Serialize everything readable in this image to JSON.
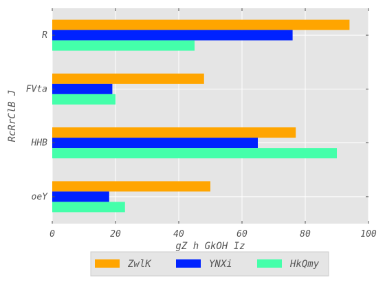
{
  "chart_data": {
    "type": "bar",
    "orientation": "horizontal",
    "categories": [
      "R",
      "FVta",
      "HHB",
      "oeY"
    ],
    "series": [
      {
        "name": "ZwlK",
        "color": "#ffa500",
        "values": [
          94,
          48,
          77,
          50
        ]
      },
      {
        "name": "YNXi",
        "color": "#0022ff",
        "values": [
          76,
          19,
          65,
          18
        ]
      },
      {
        "name": "HkQmy",
        "color": "#44ffaa",
        "values": [
          45,
          20,
          90,
          23
        ]
      }
    ],
    "xlabel": "gZ h GkOH Iz",
    "ylabel": "RcRrClB J",
    "xlim": [
      0,
      100
    ],
    "xticks": [
      0,
      20,
      40,
      60,
      80,
      100
    ],
    "grid": true,
    "legend_position": "bottom-center",
    "background_color": "#e5e5e5"
  }
}
